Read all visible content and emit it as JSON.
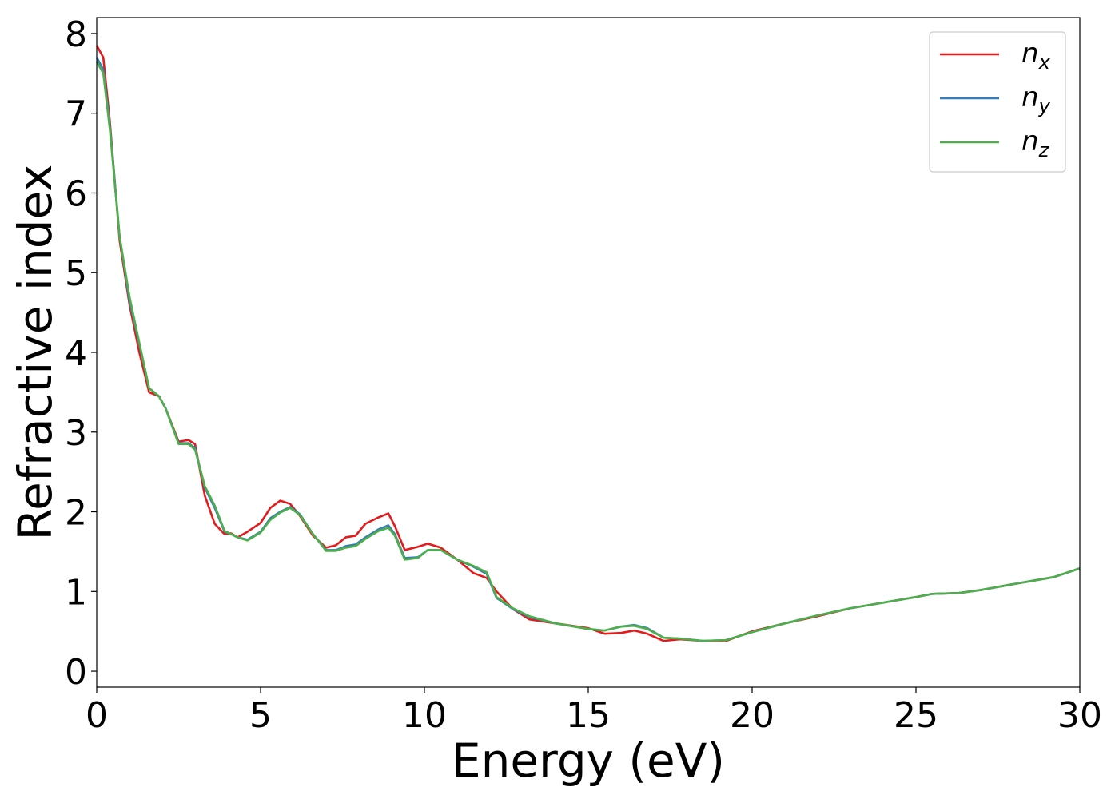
{
  "chart_data": {
    "type": "line",
    "xlabel": "Energy (eV)",
    "ylabel": "Refractive index",
    "xlim": [
      0,
      30
    ],
    "ylim": [
      -0.2,
      8.2
    ],
    "xticks": [
      0,
      5,
      10,
      15,
      20,
      25,
      30
    ],
    "yticks": [
      0,
      1,
      2,
      3,
      4,
      5,
      6,
      7,
      8
    ],
    "grid": false,
    "legend_position": "top-right",
    "series": [
      {
        "name": "n",
        "subscript": "x",
        "color": "#e41a1c",
        "x": [
          0,
          0.2,
          0.4,
          0.7,
          1.0,
          1.3,
          1.6,
          1.9,
          2.1,
          2.5,
          2.8,
          3.0,
          3.3,
          3.6,
          3.9,
          4.1,
          4.3,
          4.6,
          5.0,
          5.3,
          5.6,
          5.9,
          6.2,
          6.6,
          7.0,
          7.3,
          7.6,
          7.9,
          8.2,
          8.6,
          8.9,
          9.1,
          9.4,
          9.8,
          10.1,
          10.5,
          11.0,
          11.5,
          11.9,
          12.2,
          12.7,
          13.2,
          14.0,
          15.0,
          15.5,
          16.0,
          16.4,
          16.8,
          17.3,
          17.8,
          18.5,
          19.2,
          20.0,
          21.0,
          22.0,
          23.0,
          24.0,
          25.0,
          25.5,
          26.3,
          27.0,
          27.8,
          28.5,
          29.2,
          30.0
        ],
        "values": [
          7.85,
          7.7,
          6.9,
          5.4,
          4.6,
          4.0,
          3.5,
          3.45,
          3.3,
          2.88,
          2.9,
          2.85,
          2.2,
          1.85,
          1.72,
          1.73,
          1.68,
          1.75,
          1.86,
          2.05,
          2.14,
          2.1,
          1.95,
          1.7,
          1.55,
          1.58,
          1.68,
          1.7,
          1.85,
          1.93,
          1.98,
          1.82,
          1.52,
          1.56,
          1.6,
          1.55,
          1.4,
          1.23,
          1.17,
          1.0,
          0.78,
          0.65,
          0.6,
          0.54,
          0.47,
          0.48,
          0.51,
          0.47,
          0.38,
          0.4,
          0.38,
          0.38,
          0.5,
          0.6,
          0.69,
          0.79,
          0.86,
          0.93,
          0.97,
          0.98,
          1.02,
          1.08,
          1.13,
          1.18,
          1.29
        ]
      },
      {
        "name": "n",
        "subscript": "y",
        "color": "#377eb8",
        "x": [
          0,
          0.2,
          0.4,
          0.7,
          1.0,
          1.3,
          1.6,
          1.9,
          2.1,
          2.5,
          2.8,
          3.0,
          3.3,
          3.6,
          3.9,
          4.1,
          4.3,
          4.6,
          5.0,
          5.3,
          5.6,
          5.9,
          6.2,
          6.6,
          7.0,
          7.3,
          7.6,
          7.9,
          8.2,
          8.6,
          8.9,
          9.1,
          9.4,
          9.8,
          10.1,
          10.5,
          11.0,
          11.5,
          11.9,
          12.2,
          12.7,
          13.2,
          14.0,
          15.0,
          15.5,
          16.0,
          16.4,
          16.8,
          17.3,
          17.8,
          18.5,
          19.2,
          20.0,
          21.0,
          22.0,
          23.0,
          24.0,
          25.0,
          25.5,
          26.3,
          27.0,
          27.8,
          28.5,
          29.2,
          30.0
        ],
        "values": [
          7.7,
          7.55,
          6.85,
          5.45,
          4.65,
          4.1,
          3.55,
          3.45,
          3.3,
          2.86,
          2.86,
          2.8,
          2.3,
          2.05,
          1.75,
          1.72,
          1.68,
          1.65,
          1.75,
          1.92,
          2.0,
          2.06,
          1.97,
          1.72,
          1.52,
          1.52,
          1.57,
          1.59,
          1.68,
          1.78,
          1.83,
          1.72,
          1.42,
          1.43,
          1.52,
          1.52,
          1.4,
          1.31,
          1.22,
          0.92,
          0.78,
          0.68,
          0.6,
          0.53,
          0.51,
          0.56,
          0.58,
          0.54,
          0.42,
          0.41,
          0.38,
          0.39,
          0.49,
          0.6,
          0.7,
          0.79,
          0.86,
          0.93,
          0.97,
          0.98,
          1.02,
          1.08,
          1.13,
          1.18,
          1.29
        ]
      },
      {
        "name": "n",
        "subscript": "z",
        "color": "#4daf4a",
        "x": [
          0,
          0.2,
          0.4,
          0.7,
          1.0,
          1.3,
          1.6,
          1.9,
          2.1,
          2.5,
          2.8,
          3.0,
          3.3,
          3.6,
          3.9,
          4.1,
          4.3,
          4.6,
          5.0,
          5.3,
          5.6,
          5.9,
          6.2,
          6.6,
          7.0,
          7.3,
          7.6,
          7.9,
          8.2,
          8.6,
          8.9,
          9.1,
          9.4,
          9.8,
          10.1,
          10.5,
          11.0,
          11.5,
          11.9,
          12.2,
          12.7,
          13.2,
          14.0,
          15.0,
          15.5,
          16.0,
          16.4,
          16.8,
          17.3,
          17.8,
          18.5,
          19.2,
          20.0,
          21.0,
          22.0,
          23.0,
          24.0,
          25.0,
          25.5,
          26.3,
          27.0,
          27.8,
          28.5,
          29.2,
          30.0
        ],
        "values": [
          7.65,
          7.5,
          6.8,
          5.45,
          4.7,
          4.12,
          3.55,
          3.45,
          3.3,
          2.85,
          2.85,
          2.78,
          2.32,
          2.08,
          1.76,
          1.72,
          1.68,
          1.64,
          1.74,
          1.9,
          1.99,
          2.05,
          1.96,
          1.72,
          1.51,
          1.51,
          1.55,
          1.57,
          1.66,
          1.76,
          1.8,
          1.7,
          1.4,
          1.42,
          1.52,
          1.52,
          1.4,
          1.32,
          1.24,
          0.93,
          0.79,
          0.69,
          0.6,
          0.53,
          0.51,
          0.56,
          0.57,
          0.53,
          0.42,
          0.41,
          0.38,
          0.39,
          0.49,
          0.6,
          0.7,
          0.79,
          0.86,
          0.93,
          0.97,
          0.98,
          1.02,
          1.08,
          1.13,
          1.18,
          1.29
        ]
      }
    ]
  }
}
